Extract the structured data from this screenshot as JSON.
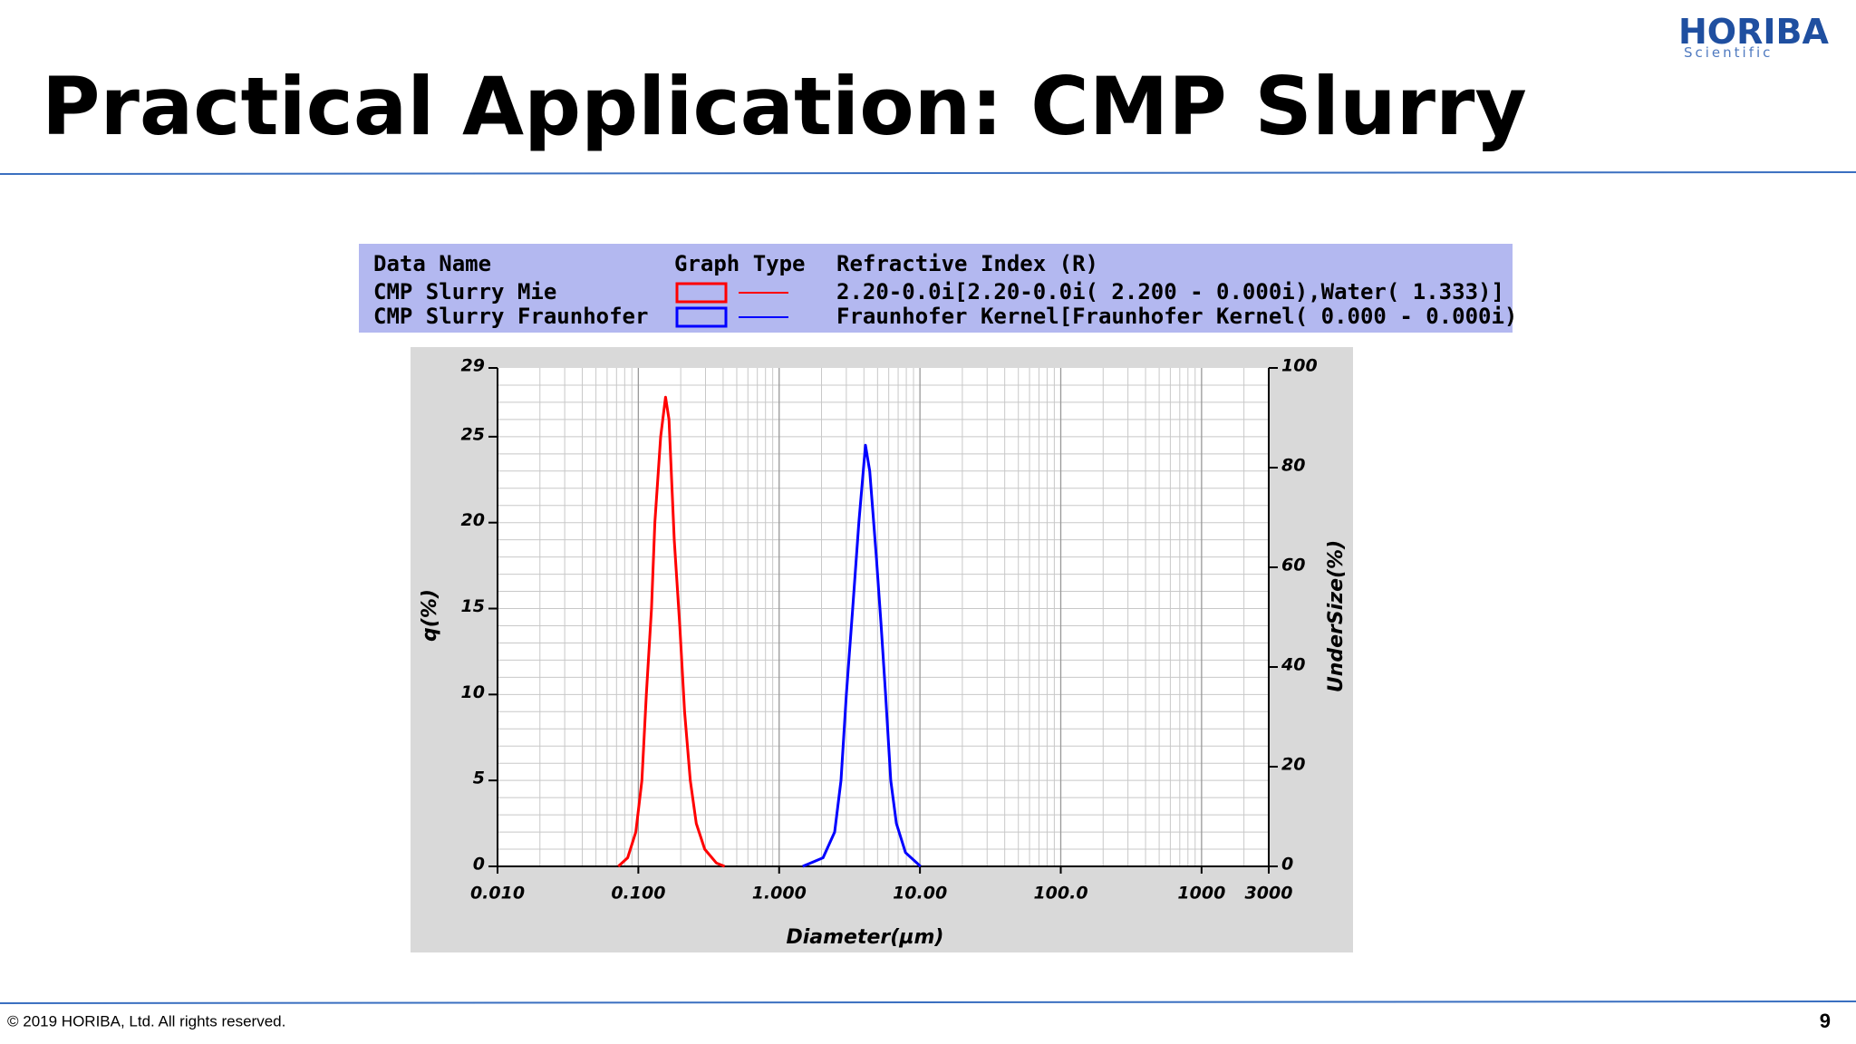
{
  "slide": {
    "title": "Practical Application: CMP Slurry",
    "logo": "HORIBA",
    "logo_subtitle": "Scientific",
    "footer": "© 2019 HORIBA, Ltd. All rights reserved.",
    "page_number": "9"
  },
  "chart_data": {
    "type": "line",
    "legend_headers": [
      "Data Name",
      "Graph Type",
      "Refractive Index (R)"
    ],
    "x_label": "Diameter(µm)",
    "y_label": "q(%)",
    "y2_label": "UnderSize(%)",
    "x_log": true,
    "grid": true,
    "minor_grid": true,
    "xlim": [
      0.01,
      3000
    ],
    "xticks": [
      {
        "value": 0.01,
        "label": "0.010"
      },
      {
        "value": 0.1,
        "label": "0.100"
      },
      {
        "value": 1,
        "label": "1.000"
      },
      {
        "value": 10,
        "label": "10.00"
      },
      {
        "value": 100,
        "label": "100.0"
      },
      1000,
      3000
    ],
    "ylim": [
      0,
      29
    ],
    "yticks": [
      0,
      5,
      10,
      15,
      20,
      25,
      29
    ],
    "y2lim": [
      0,
      100
    ],
    "y2ticks": [
      0,
      20,
      40,
      60,
      80,
      100
    ],
    "series": [
      {
        "name": "CMP Slurry Mie",
        "color": "#ff0000",
        "refractive_index": "2.20-0.0i[2.20-0.0i( 2.200 -  0.000i),Water( 1.333)]",
        "x": [
          0.072,
          0.084,
          0.096,
          0.106,
          0.114,
          0.124,
          0.131,
          0.144,
          0.156,
          0.165,
          0.18,
          0.197,
          0.213,
          0.234,
          0.258,
          0.296,
          0.358,
          0.41
        ],
        "values": [
          0,
          0.5,
          2,
          5,
          10,
          15,
          20,
          25,
          27.3,
          26,
          19,
          14,
          9,
          5,
          2.5,
          1,
          0.2,
          0
        ]
      },
      {
        "name": "CMP Slurry Fraunhofer",
        "color": "#0000ff",
        "refractive_index": "Fraunhofer Kernel[Fraunhofer Kernel( 0.000 -  0.000i)",
        "x": [
          1.47,
          2.05,
          2.48,
          2.75,
          3.0,
          3.33,
          3.68,
          4.1,
          4.4,
          4.9,
          5.3,
          5.7,
          6.2,
          6.8,
          7.9,
          10.1
        ],
        "values": [
          0,
          0.5,
          2,
          5,
          10,
          15,
          20,
          24.5,
          23,
          18,
          14,
          10,
          5,
          2.5,
          0.8,
          0
        ]
      }
    ]
  }
}
